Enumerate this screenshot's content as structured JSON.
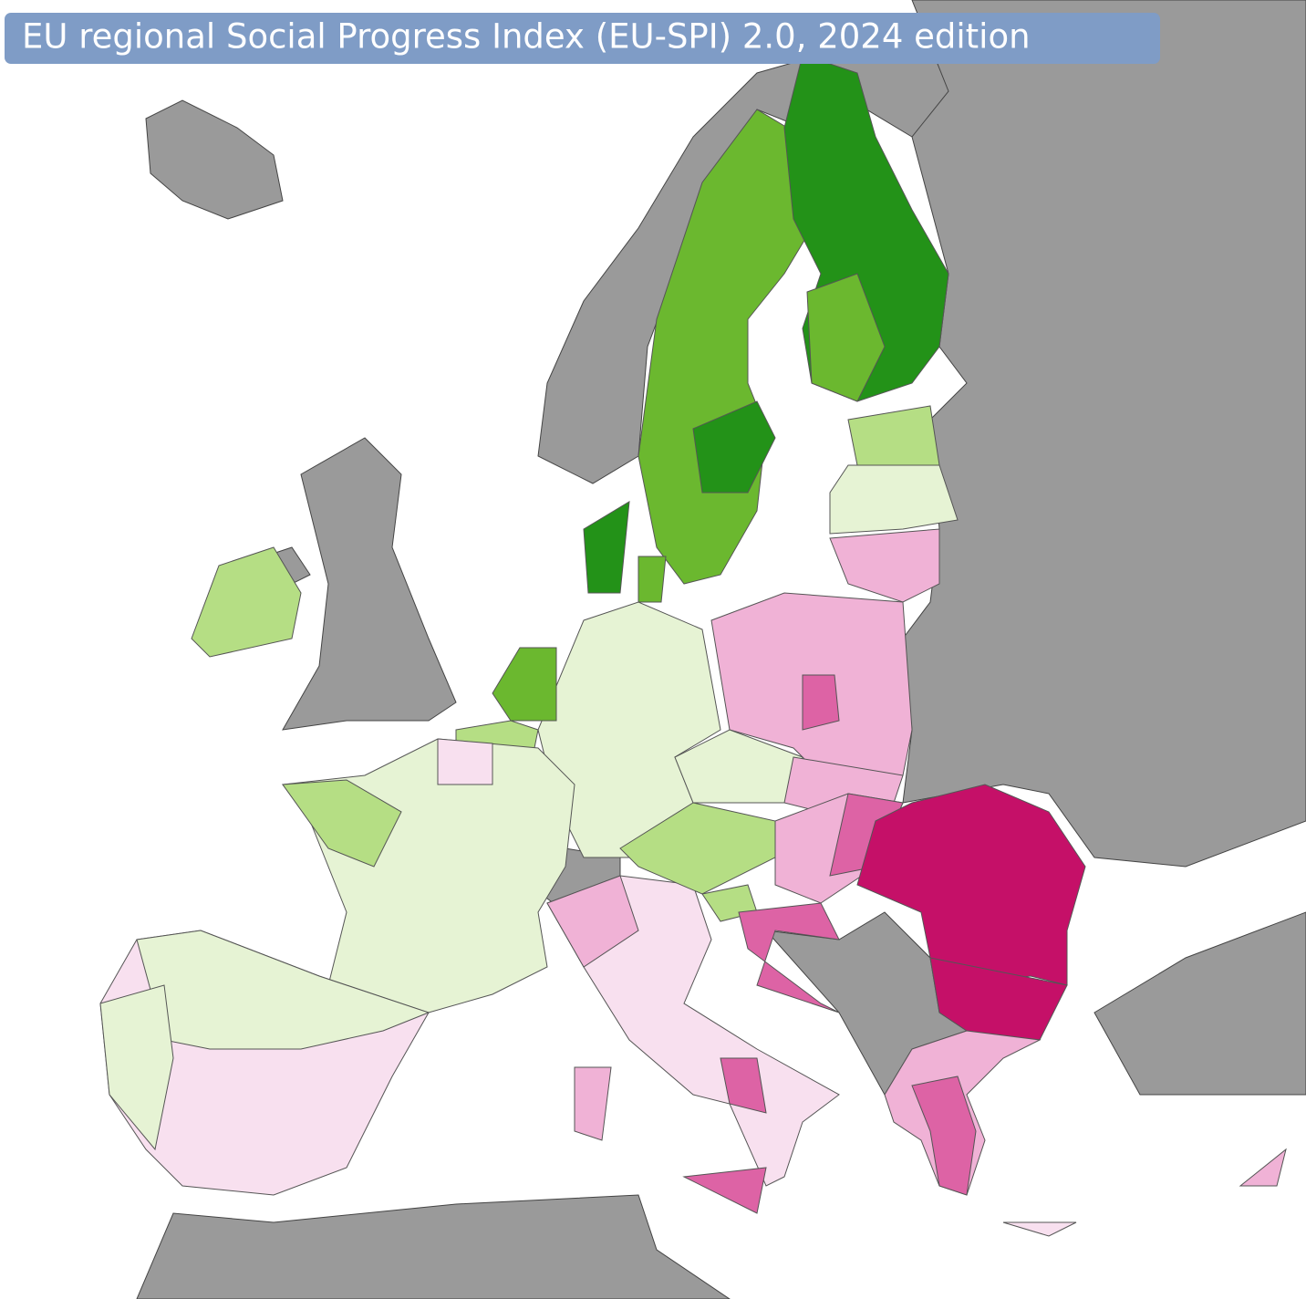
{
  "title": "EU regional Social Progress Index (EU-SPI) 2.0, 2024 edition"
}
